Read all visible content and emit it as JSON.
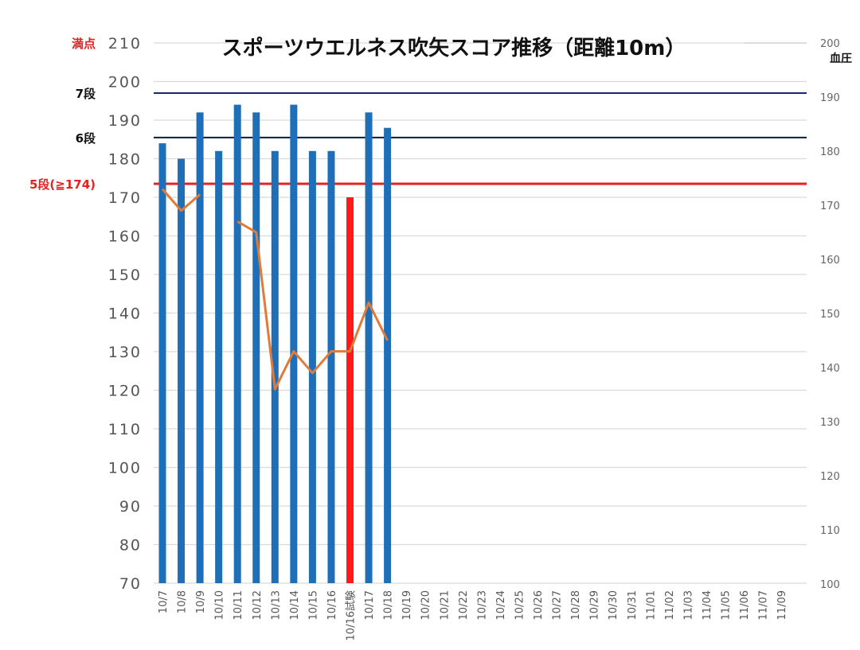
{
  "chart_data": {
    "type": "bar",
    "title": "スポーツウエルネス吹矢スコア推移（距離10m）",
    "categories": [
      "10/7",
      "10/8",
      "10/9",
      "10/10",
      "10/11",
      "10/12",
      "10/13",
      "10/14",
      "10/15",
      "10/16",
      "10/16試験",
      "10/17",
      "10/18",
      "10/19",
      "10/20",
      "10/21",
      "10/22",
      "10/23",
      "10/24",
      "10/25",
      "10/26",
      "10/27",
      "10/28",
      "10/29",
      "10/30",
      "10/31",
      "11/01",
      "11/02",
      "11/03",
      "11/04",
      "11/05",
      "11/06",
      "11/07",
      "11/09"
    ],
    "series": [
      {
        "axis": "left",
        "type": "bar",
        "color": "#1f6fb8",
        "highlight_color": "#ff1a1a",
        "highlight_category": "10/16試験",
        "values": [
          184,
          180,
          192,
          182,
          194,
          192,
          182,
          194,
          182,
          182,
          170,
          192,
          188,
          null,
          null,
          null,
          null,
          null,
          null,
          null,
          null,
          null,
          null,
          null,
          null,
          null,
          null,
          null,
          null,
          null,
          null,
          null,
          null,
          null
        ]
      },
      {
        "name": "血圧",
        "axis": "right",
        "type": "line",
        "color": "#e07b39",
        "values": [
          173,
          169,
          172,
          null,
          167,
          165,
          136,
          143,
          139,
          143,
          143,
          152,
          145,
          null,
          null,
          null,
          null,
          null,
          null,
          null,
          null,
          null,
          null,
          null,
          null,
          null,
          null,
          null,
          null,
          null,
          null,
          null,
          null,
          null
        ]
      }
    ],
    "ylim": [
      70,
      210
    ],
    "yticks": [
      "70",
      "80",
      "90",
      "100",
      "110",
      "120",
      "130",
      "140",
      "150",
      "160",
      "170",
      "180",
      "190",
      "200",
      "210"
    ],
    "y2label": "血圧",
    "y2lim": [
      100,
      200
    ],
    "y2ticks": [
      "100",
      "110",
      "120",
      "130",
      "140",
      "150",
      "160",
      "170",
      "180",
      "190",
      "200"
    ],
    "reference_lines": [
      {
        "label": "満点",
        "value": 210,
        "color": "#e32222",
        "line_color": "#cccccc"
      },
      {
        "label": "7段",
        "value": 197,
        "color": "#111111",
        "line_color": "#1a237e"
      },
      {
        "label": "6段",
        "value": 185.5,
        "color": "#111111",
        "line_color": "#0d1b3e"
      },
      {
        "label": "5段(≧174)",
        "value": 173.5,
        "color": "#e32222",
        "line_color": "#e32222"
      }
    ],
    "grid": true,
    "legend": "none"
  }
}
